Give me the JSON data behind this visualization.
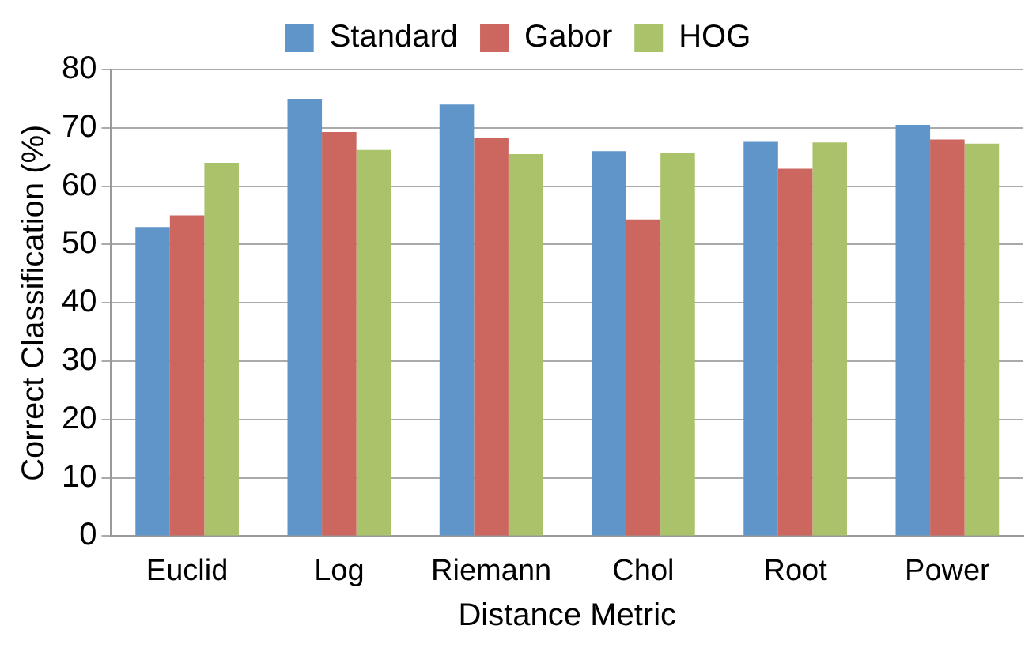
{
  "chart_data": {
    "type": "bar",
    "xlabel": "Distance Metric",
    "ylabel": "Correct Classification (%)",
    "categories": [
      "Euclid",
      "Log",
      "Riemann",
      "Chol",
      "Root",
      "Power"
    ],
    "series": [
      {
        "name": "Standard",
        "color": "#6095c9",
        "values": [
          53,
          75,
          74,
          66,
          67.6,
          70.5
        ]
      },
      {
        "name": "Gabor",
        "color": "#cc6760",
        "values": [
          55,
          69.3,
          68.2,
          54.3,
          63,
          68
        ]
      },
      {
        "name": "HOG",
        "color": "#aac36b",
        "values": [
          64,
          66.2,
          65.5,
          65.7,
          67.5,
          67.3
        ]
      }
    ],
    "ylim": [
      0,
      80
    ],
    "yticks": [
      0,
      10,
      20,
      30,
      40,
      50,
      60,
      70,
      80
    ],
    "grid": "y",
    "legend": "top"
  }
}
